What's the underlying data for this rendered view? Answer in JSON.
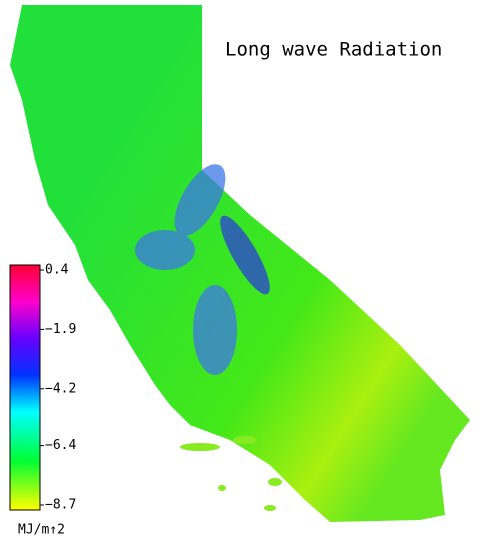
{
  "title": "Long wave Radiation",
  "colorbar": {
    "unit": "MJ/m↑2",
    "ticks": [
      {
        "value": 0.4,
        "label": "0.4"
      },
      {
        "value": -1.9,
        "label": "−1.9"
      },
      {
        "value": -4.2,
        "label": "−4.2"
      },
      {
        "value": -6.4,
        "label": "−6.4"
      },
      {
        "value": -8.7,
        "label": "−8.7"
      }
    ]
  }
}
